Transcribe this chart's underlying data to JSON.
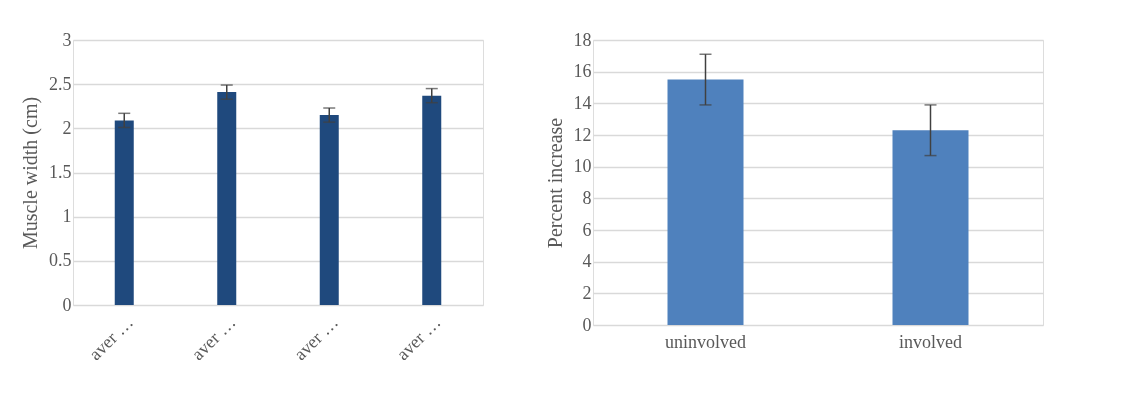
{
  "chart_data": [
    {
      "type": "bar",
      "ylabel": "Muscle width (cm)",
      "categories": [
        "aver …",
        "aver …",
        "aver …",
        "aver …"
      ],
      "values": [
        2.09,
        2.41,
        2.15,
        2.37
      ],
      "errors": [
        0.08,
        0.08,
        0.08,
        0.08
      ],
      "color": "#1f497d",
      "ylim": [
        0,
        3
      ],
      "yticks": [
        0,
        0.5,
        1,
        1.5,
        2,
        2.5,
        3
      ],
      "grid": "y"
    },
    {
      "type": "bar",
      "ylabel": "Percent increase",
      "categories": [
        "uninvolved",
        "involved"
      ],
      "values": [
        15.5,
        12.3
      ],
      "errors": [
        1.6,
        1.6
      ],
      "color": "#4f81bd",
      "ylim": [
        0,
        18
      ],
      "yticks": [
        0,
        2,
        4,
        6,
        8,
        10,
        12,
        14,
        16,
        18
      ],
      "grid": "y"
    }
  ]
}
